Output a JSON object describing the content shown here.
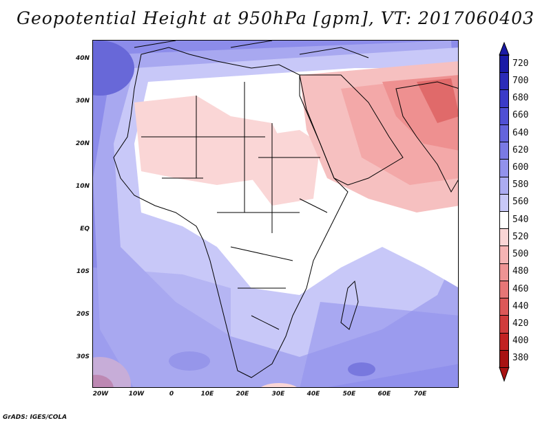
{
  "title": "Geopotential Height at 950hPa [gpm], VT: 2017060403",
  "credit": "GrADS: IGES/COLA",
  "lat_labels": [
    "40N",
    "30N",
    "20N",
    "10N",
    "EQ",
    "10S",
    "20S",
    "30S"
  ],
  "lon_labels": [
    "20W",
    "10W",
    "0",
    "10E",
    "20E",
    "30E",
    "40E",
    "50E",
    "60E",
    "70E"
  ],
  "colorbar": {
    "labels": [
      "720",
      "700",
      "680",
      "660",
      "640",
      "620",
      "600",
      "580",
      "560",
      "540",
      "520",
      "500",
      "480",
      "460",
      "440",
      "420",
      "400",
      "380"
    ],
    "colors": [
      "#1a1aa6",
      "#2b2bb8",
      "#3b3bc8",
      "#5050d4",
      "#6464dc",
      "#7a7ae4",
      "#9292ec",
      "#acacf2",
      "#c8c8f8",
      "#ffffff",
      "#fad6d6",
      "#f5b4b4",
      "#ee9494",
      "#e67676",
      "#dc5858",
      "#d03c3c",
      "#c22222",
      "#a81212"
    ]
  },
  "map": {
    "region": "Africa and Middle East",
    "variable": "Geopotential Height",
    "level": "950hPa",
    "units": "gpm",
    "valid_time": "2017060403"
  }
}
